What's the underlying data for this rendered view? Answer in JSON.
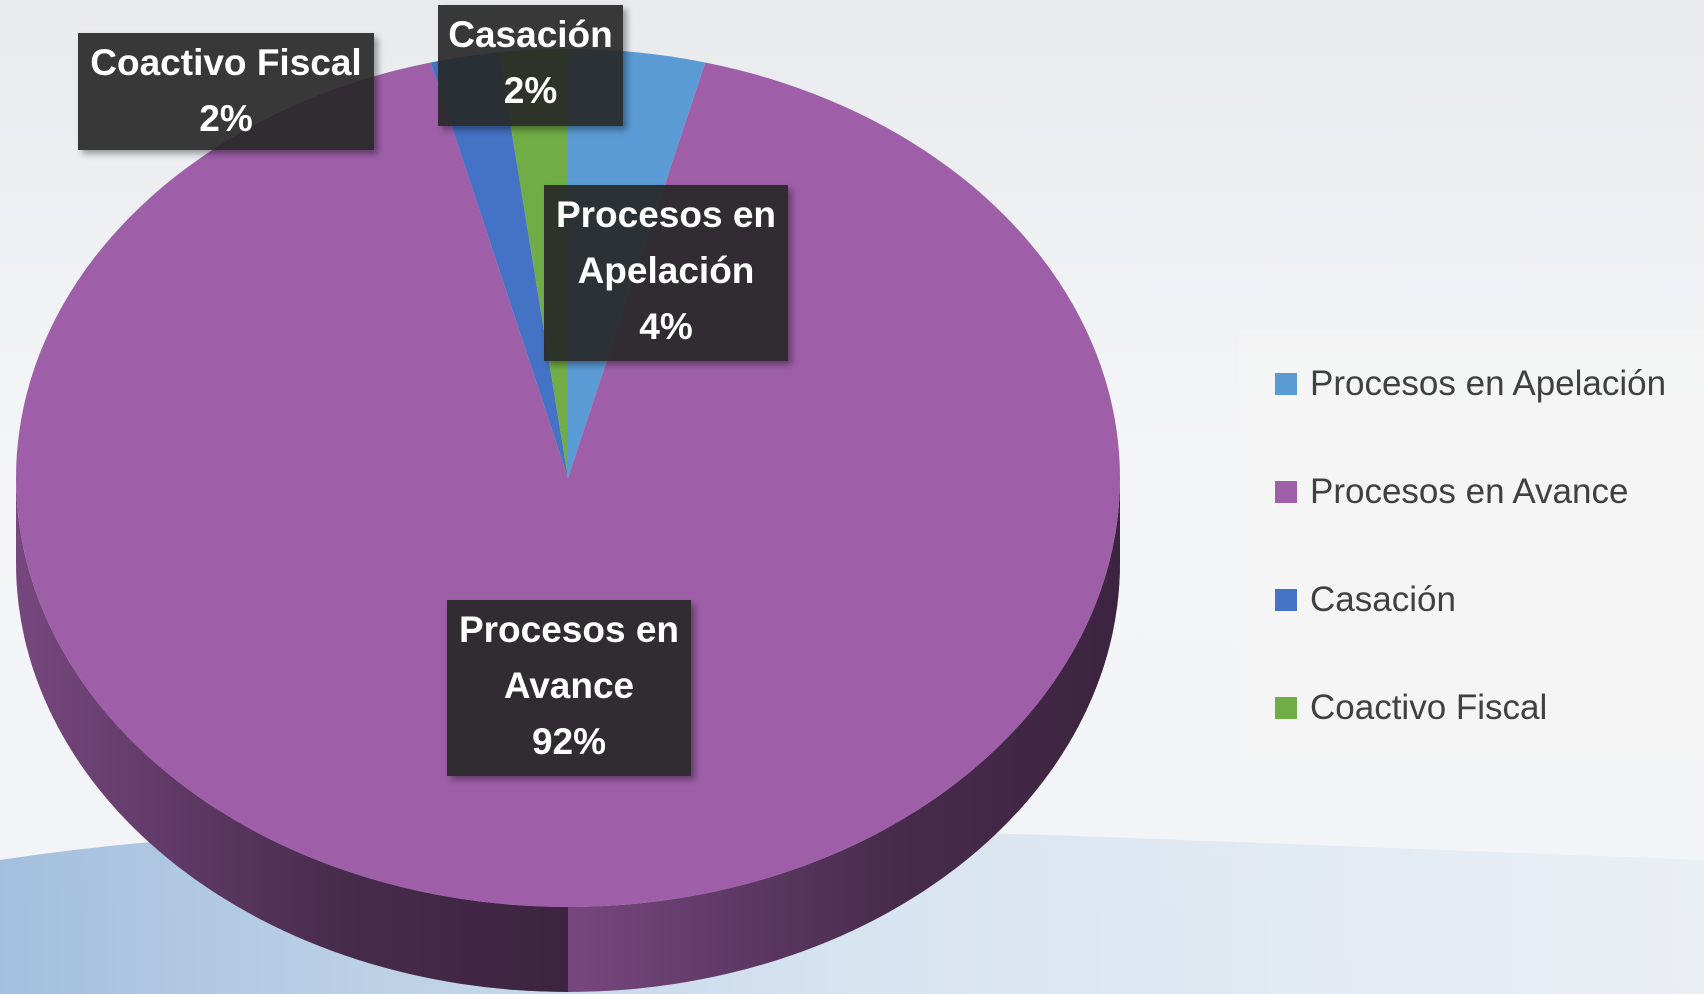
{
  "chart_data": {
    "type": "pie",
    "categories": [
      "Procesos en Apelación",
      "Procesos en Avance",
      "Casación",
      "Coactivo Fiscal"
    ],
    "values": [
      4,
      92,
      2,
      2
    ],
    "value_labels": [
      "4%",
      "92%",
      "2%",
      "2%"
    ],
    "colors": [
      "#5b9bd5",
      "#9e5fa8",
      "#4472c4",
      "#70ad47"
    ],
    "legend": "right"
  }
}
